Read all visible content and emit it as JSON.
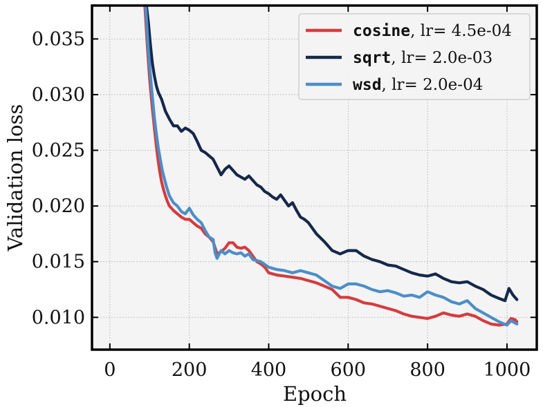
{
  "chart_data": {
    "type": "line",
    "xlabel": "Epoch",
    "ylabel": "Validation loss",
    "xlim": [
      -45,
      1075
    ],
    "ylim": [
      0.0071,
      0.038
    ],
    "xticks": [
      0,
      200,
      400,
      600,
      800,
      1000
    ],
    "xtick_labels": [
      "0",
      "200",
      "400",
      "600",
      "800",
      "1000"
    ],
    "yticks": [
      0.01,
      0.015,
      0.02,
      0.025,
      0.03,
      0.035
    ],
    "ytick_labels": [
      "0.010",
      "0.015",
      "0.020",
      "0.025",
      "0.030",
      "0.035"
    ],
    "grid": true,
    "legend_position": "top-right",
    "colors": {
      "background": "#f4f4f4",
      "grid": "#b8b8b8",
      "frame": "#000000"
    },
    "series": [
      {
        "name_code": "cosine",
        "name_rest": ", lr= 4.5e-04",
        "color": "#d63b3e",
        "x": [
          88,
          95,
          100,
          105,
          110,
          115,
          120,
          125,
          130,
          135,
          140,
          145,
          150,
          160,
          170,
          180,
          190,
          200,
          210,
          220,
          230,
          240,
          250,
          260,
          270,
          280,
          290,
          300,
          310,
          320,
          330,
          340,
          350,
          360,
          370,
          380,
          390,
          400,
          420,
          440,
          460,
          480,
          500,
          520,
          540,
          560,
          580,
          600,
          620,
          640,
          660,
          680,
          700,
          720,
          740,
          760,
          780,
          800,
          820,
          840,
          860,
          880,
          900,
          920,
          940,
          960,
          980,
          1000,
          1010,
          1020,
          1025
        ],
        "y": [
          0.038,
          0.034,
          0.0315,
          0.0295,
          0.0277,
          0.026,
          0.0245,
          0.0232,
          0.0222,
          0.0215,
          0.0209,
          0.0204,
          0.02,
          0.0196,
          0.0193,
          0.019,
          0.0188,
          0.0188,
          0.0185,
          0.0182,
          0.018,
          0.0175,
          0.0172,
          0.0168,
          0.0157,
          0.0159,
          0.0162,
          0.0167,
          0.0167,
          0.0163,
          0.0162,
          0.0163,
          0.016,
          0.0155,
          0.015,
          0.0148,
          0.0145,
          0.014,
          0.0138,
          0.0137,
          0.0136,
          0.0135,
          0.0133,
          0.0131,
          0.0128,
          0.0125,
          0.0118,
          0.0118,
          0.0116,
          0.0113,
          0.0112,
          0.011,
          0.0108,
          0.0106,
          0.0103,
          0.0101,
          0.01,
          0.0099,
          0.0101,
          0.0104,
          0.0102,
          0.0101,
          0.0103,
          0.0101,
          0.0097,
          0.0094,
          0.0093,
          0.0094,
          0.0099,
          0.0098,
          0.0096
        ]
      },
      {
        "name_code": "sqrt",
        "name_rest": ", lr= 2.0e-03",
        "color": "#15284b",
        "x": [
          92,
          97,
          102,
          107,
          112,
          117,
          122,
          130,
          140,
          150,
          160,
          170,
          180,
          190,
          200,
          210,
          220,
          230,
          240,
          250,
          260,
          270,
          280,
          290,
          300,
          310,
          320,
          330,
          340,
          350,
          360,
          370,
          380,
          390,
          400,
          410,
          420,
          430,
          440,
          450,
          460,
          470,
          480,
          490,
          500,
          520,
          540,
          560,
          580,
          600,
          620,
          640,
          660,
          680,
          700,
          720,
          740,
          760,
          780,
          800,
          820,
          840,
          860,
          880,
          900,
          920,
          940,
          960,
          980,
          995,
          1005,
          1015,
          1025
        ],
        "y": [
          0.038,
          0.0365,
          0.0345,
          0.0328,
          0.0317,
          0.0308,
          0.0302,
          0.0296,
          0.0285,
          0.0278,
          0.0272,
          0.0272,
          0.0267,
          0.027,
          0.0268,
          0.0265,
          0.0258,
          0.025,
          0.0248,
          0.0245,
          0.0242,
          0.0235,
          0.0228,
          0.0233,
          0.0236,
          0.0232,
          0.0228,
          0.0226,
          0.0224,
          0.0227,
          0.0223,
          0.0219,
          0.0217,
          0.0213,
          0.0211,
          0.0208,
          0.0206,
          0.021,
          0.0205,
          0.02,
          0.0203,
          0.0196,
          0.019,
          0.0188,
          0.0185,
          0.0175,
          0.0168,
          0.016,
          0.0157,
          0.016,
          0.016,
          0.0155,
          0.0152,
          0.015,
          0.0147,
          0.0146,
          0.0143,
          0.014,
          0.0138,
          0.0137,
          0.0139,
          0.0135,
          0.0132,
          0.0131,
          0.0132,
          0.0128,
          0.0125,
          0.012,
          0.0117,
          0.0115,
          0.0126,
          0.012,
          0.0116
        ]
      },
      {
        "name_code": "wsd",
        "name_rest": ", lr= 2.0e-04",
        "color": "#4b8ec8",
        "x": [
          90,
          97,
          102,
          107,
          112,
          117,
          122,
          127,
          132,
          137,
          142,
          150,
          160,
          170,
          180,
          190,
          200,
          210,
          220,
          230,
          240,
          250,
          260,
          265,
          270,
          280,
          290,
          300,
          310,
          320,
          330,
          340,
          350,
          360,
          380,
          400,
          420,
          440,
          460,
          480,
          500,
          520,
          540,
          560,
          580,
          600,
          620,
          640,
          660,
          680,
          700,
          720,
          740,
          760,
          780,
          800,
          820,
          840,
          860,
          880,
          900,
          920,
          940,
          960,
          980,
          1000,
          1010,
          1020,
          1025
        ],
        "y": [
          0.038,
          0.034,
          0.0318,
          0.0298,
          0.028,
          0.0265,
          0.0252,
          0.0242,
          0.0232,
          0.0225,
          0.0218,
          0.0209,
          0.0203,
          0.02,
          0.0195,
          0.0193,
          0.0198,
          0.0192,
          0.0188,
          0.0185,
          0.0178,
          0.0172,
          0.017,
          0.0158,
          0.0153,
          0.016,
          0.0157,
          0.016,
          0.0158,
          0.0157,
          0.0158,
          0.0155,
          0.0157,
          0.0152,
          0.015,
          0.0145,
          0.0143,
          0.0142,
          0.014,
          0.0142,
          0.014,
          0.0138,
          0.0133,
          0.0128,
          0.0126,
          0.013,
          0.013,
          0.0128,
          0.0125,
          0.0123,
          0.0124,
          0.0122,
          0.0119,
          0.012,
          0.0118,
          0.0123,
          0.012,
          0.0118,
          0.0114,
          0.0112,
          0.0115,
          0.0108,
          0.0104,
          0.01,
          0.0096,
          0.0093,
          0.0097,
          0.0095,
          0.0094
        ]
      }
    ]
  }
}
